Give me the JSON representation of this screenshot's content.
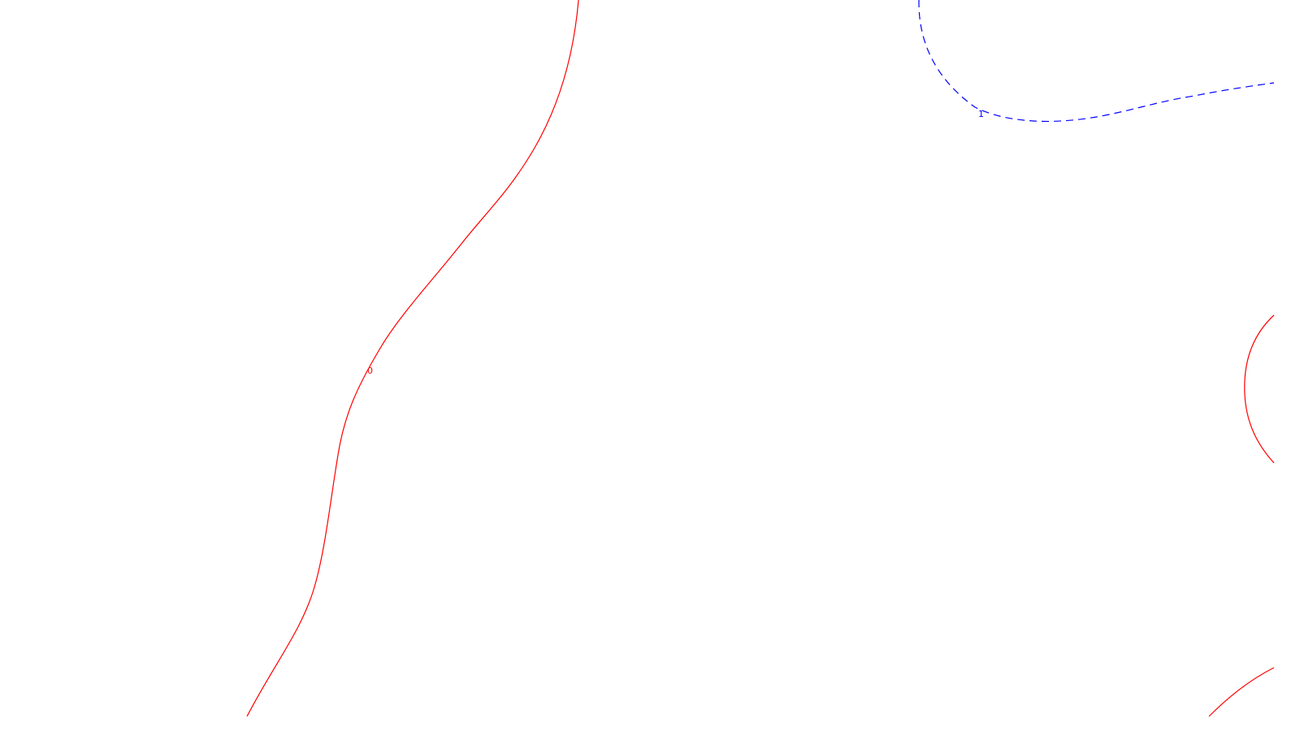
{
  "contours": {
    "zero": {
      "label": "0",
      "color": "#ff0000",
      "style": "solid"
    },
    "one": {
      "label": "1",
      "color": "#0000ff",
      "style": "dashed"
    }
  }
}
